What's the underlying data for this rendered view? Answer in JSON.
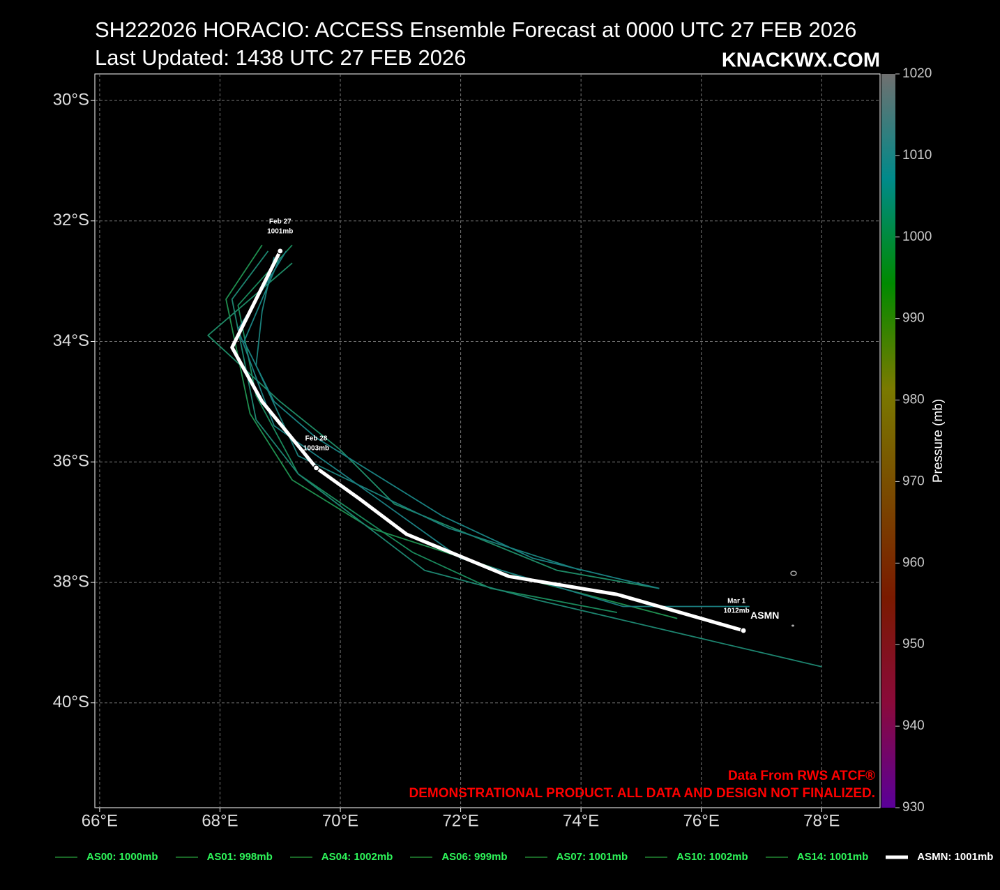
{
  "chart_data": {
    "type": "line",
    "title": "SH222026 HORACIO: ACCESS Ensemble Forecast at 0000 UTC 27 FEB 2026",
    "subtitle": "Last Updated: 1438 UTC 27 FEB 2026",
    "watermark": "KNACKWX.COM",
    "credits": [
      "Data From RWS ATCF®",
      "DEMONSTRATIONAL PRODUCT. ALL DATA AND DESIGN NOT FINALIZED."
    ],
    "xlim": [
      65.92,
      78.97
    ],
    "ylim": [
      -41.74,
      -29.56
    ],
    "xticks": [
      {
        "value": 66,
        "label": "66°E"
      },
      {
        "value": 68,
        "label": "68°E"
      },
      {
        "value": 70,
        "label": "70°E"
      },
      {
        "value": 72,
        "label": "72°E"
      },
      {
        "value": 74,
        "label": "74°E"
      },
      {
        "value": 76,
        "label": "76°E"
      },
      {
        "value": 78,
        "label": "78°E"
      }
    ],
    "yticks": [
      {
        "value": -30,
        "label": "30°S"
      },
      {
        "value": -32,
        "label": "32°S"
      },
      {
        "value": -34,
        "label": "34°S"
      },
      {
        "value": -36,
        "label": "36°S"
      },
      {
        "value": -38,
        "label": "38°S"
      },
      {
        "value": -40,
        "label": "40°S"
      }
    ],
    "grid": true,
    "series": [
      {
        "name": "AS00: 1000mb",
        "color": "#1f8f4f",
        "x": [
          68.7,
          68.1,
          68.5,
          69.2,
          70.5,
          73.3,
          75.6
        ],
        "values": [
          -32.4,
          -33.3,
          -35.2,
          -36.3,
          -37.1,
          -38.0,
          -38.6
        ]
      },
      {
        "name": "AS01: 998mb",
        "color": "#1a8a5c",
        "x": [
          69.2,
          68.3,
          68.6,
          69.3,
          71.2,
          72.5,
          74.6
        ],
        "values": [
          -32.4,
          -33.4,
          -34.9,
          -36.2,
          -37.5,
          -38.1,
          -38.5
        ]
      },
      {
        "name": "AS04: 1002mb",
        "color": "#1e8a66",
        "x": [
          69.2,
          67.8,
          69.0,
          70.0,
          70.9,
          73.6,
          75.3
        ],
        "values": [
          -32.7,
          -33.9,
          -35.0,
          -35.8,
          -36.7,
          -37.8,
          -38.1
        ]
      },
      {
        "name": "AS06: 999mb",
        "color": "#1d8570",
        "x": [
          68.8,
          68.2,
          68.6,
          69.3,
          71.4,
          73.3,
          78.0
        ],
        "values": [
          -32.5,
          -33.3,
          -35.3,
          -36.2,
          -37.8,
          -38.3,
          -39.4
        ]
      },
      {
        "name": "AS07: 1001mb",
        "color": "#1a7f7a",
        "x": [
          68.9,
          68.7,
          68.6,
          69.3,
          71.8,
          74.0
        ],
        "values": [
          -32.6,
          -33.5,
          -34.4,
          -35.9,
          -37.1,
          -37.8
        ]
      },
      {
        "name": "AS10: 1002mb",
        "color": "#198080",
        "x": [
          69.0,
          68.4,
          68.9,
          69.6,
          71.7,
          73.2,
          75.3
        ],
        "values": [
          -32.6,
          -34.0,
          -35.0,
          -35.6,
          -36.9,
          -37.6,
          -38.1
        ]
      },
      {
        "name": "AS14: 1001mb",
        "color": "#1b7d80",
        "x": [
          69.1,
          68.3,
          68.9,
          69.9,
          72.0,
          74.7,
          76.8
        ],
        "values": [
          -32.5,
          -33.8,
          -35.4,
          -36.1,
          -37.6,
          -38.4,
          -38.4
        ]
      },
      {
        "name": "ASMN: 1001mb",
        "color": "#ffffff",
        "emphasis": true,
        "end_label": "ASMN",
        "x": [
          69.0,
          68.2,
          68.7,
          69.6,
          70.3,
          71.1,
          72.8,
          74.6,
          76.7
        ],
        "values": [
          -32.5,
          -34.1,
          -35.0,
          -36.1,
          -36.6,
          -37.2,
          -37.9,
          -38.2,
          -38.8
        ],
        "point_labels": [
          [
            "Feb 27",
            "1001mb"
          ],
          null,
          null,
          [
            "Feb 28",
            "1003mb"
          ],
          null,
          null,
          null,
          null,
          [
            "Mar  1",
            "1012mb"
          ]
        ]
      }
    ],
    "colorbar": {
      "label": "Pressure (mb)",
      "lim": [
        930,
        1020
      ],
      "ticks": [
        930,
        940,
        950,
        960,
        970,
        980,
        990,
        1000,
        1010,
        1020
      ],
      "colors": [
        "#5a0099",
        "#8a0a3a",
        "#7a1a00",
        "#7a4a00",
        "#7a7a00",
        "#008a00",
        "#008a8a",
        "#707070"
      ]
    }
  }
}
